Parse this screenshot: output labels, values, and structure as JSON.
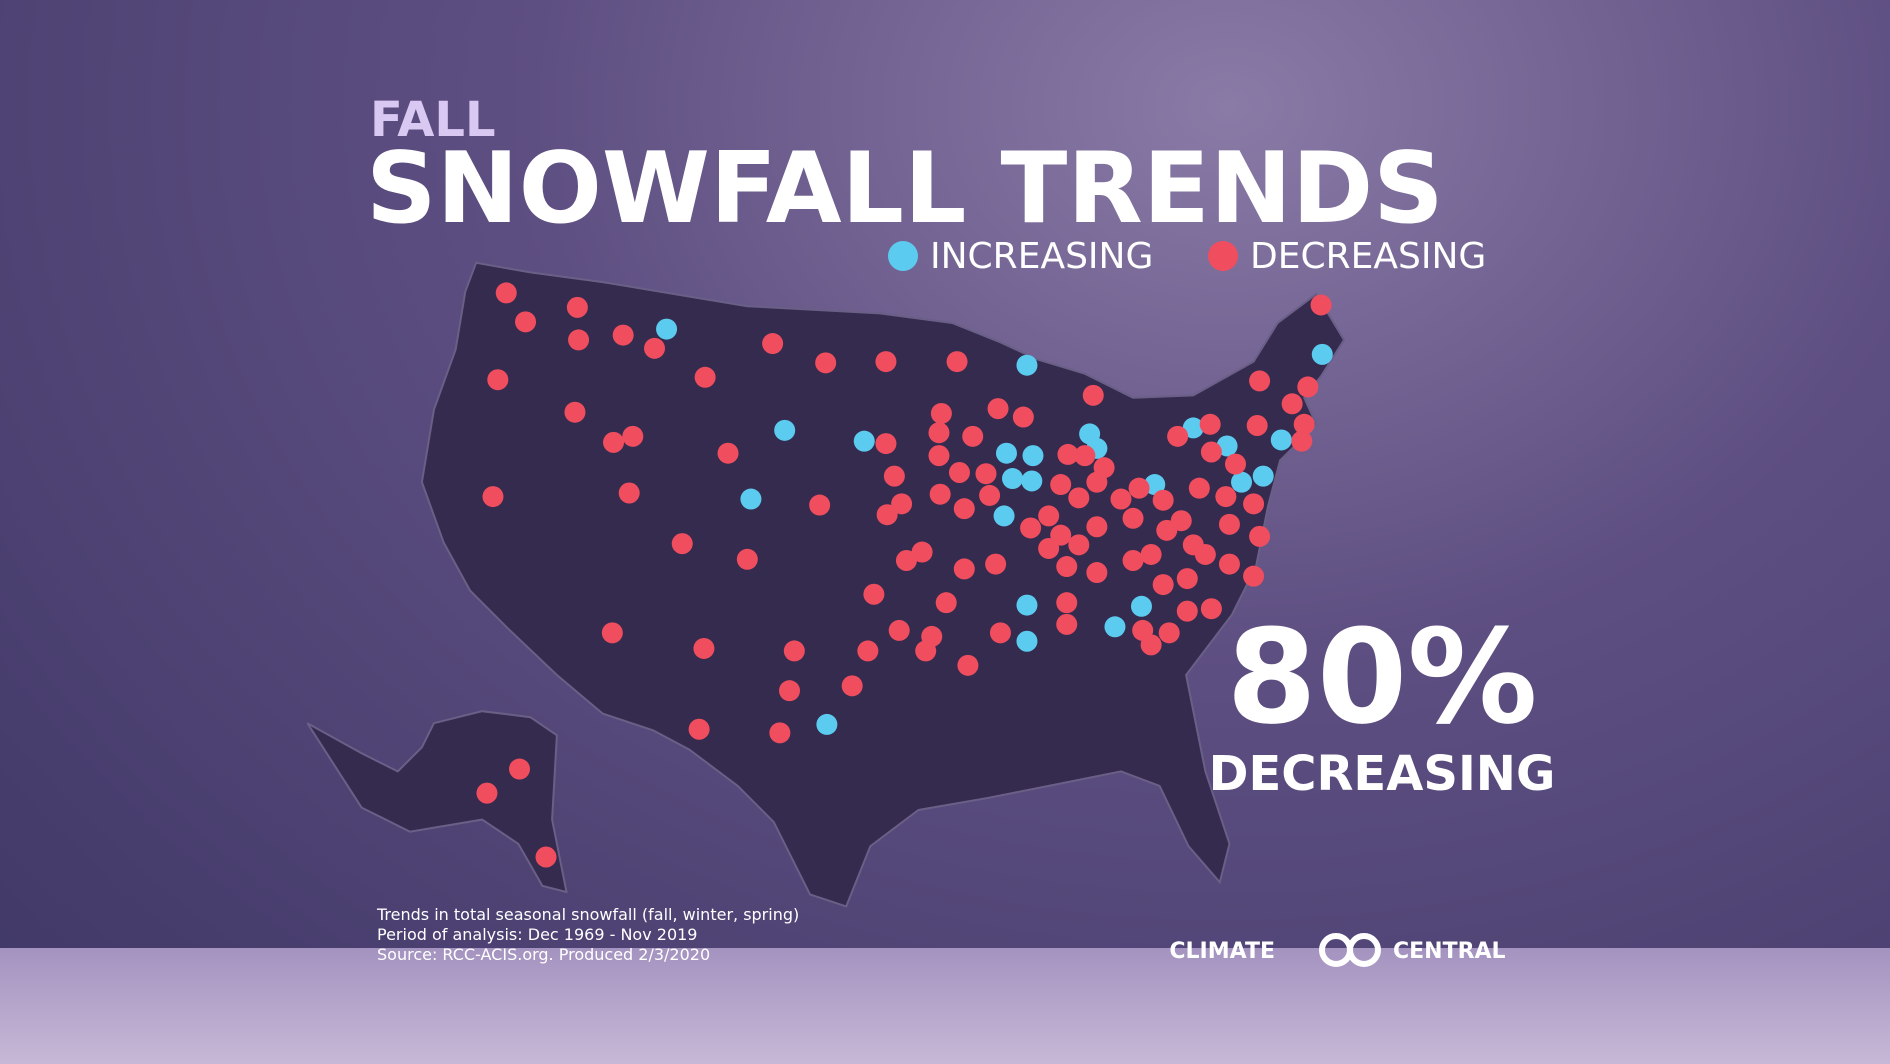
{
  "header": {
    "kicker": "FALL",
    "title": "SNOWFALL TRENDS"
  },
  "legend": {
    "items": [
      "INCREASING",
      "DECREASING"
    ]
  },
  "callout": {
    "value": "80%",
    "label": "DECREASING"
  },
  "footnote": {
    "lines": [
      "Trends in total seasonal snowfall (fall, winter, spring)",
      "Period of analysis: Dec 1969 - Nov 2019",
      "Source: RCC-ACIS.org. Produced 2/3/2020"
    ]
  },
  "logo": {
    "left": "CLIMATE",
    "right": "CENTRAL"
  }
}
